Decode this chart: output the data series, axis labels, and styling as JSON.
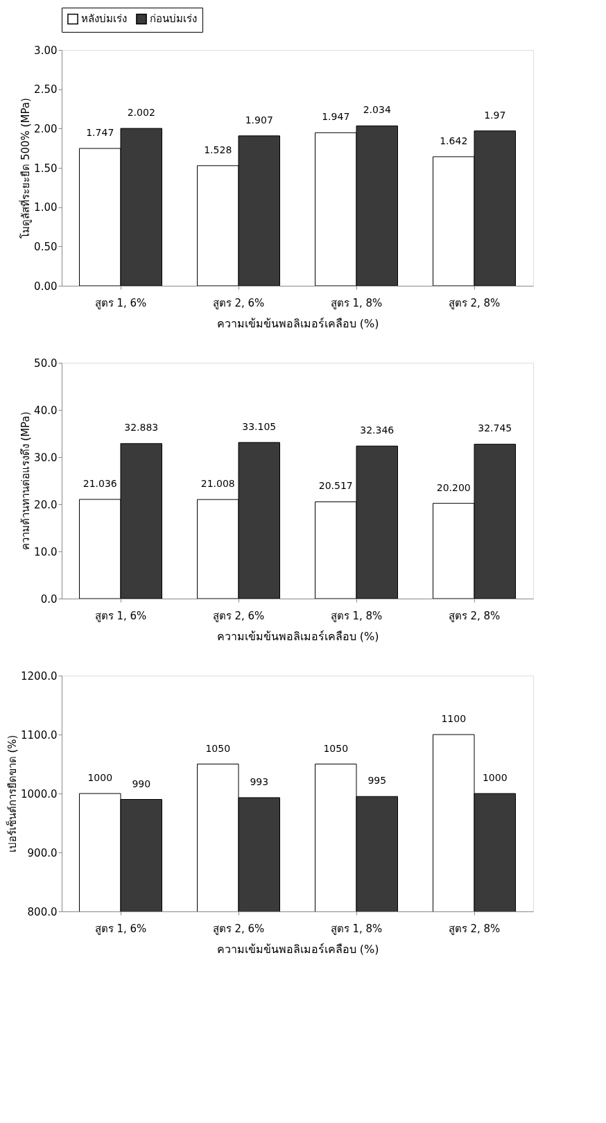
{
  "chart_data": [
    {
      "type": "bar",
      "xlabel": "ความเข้มข้นพอลิเมอร์เคลือบ (%)",
      "ylabel": "โมดูลัสที่ระยะยืด 500% (MPa)",
      "categories": [
        "สูตร 1, 6%",
        "สูตร 2, 6%",
        "สูตร 1, 8%",
        "สูตร 2, 8%"
      ],
      "series": [
        {
          "name": "หลังบ่มเร่ง",
          "color": "#ffffff",
          "values": [
            1.747,
            1.528,
            1.947,
            1.642
          ],
          "value_labels": [
            "1.747",
            "1.528",
            "1.947",
            "1.642"
          ]
        },
        {
          "name": "ก่อนบ่มเร่ง",
          "color": "#3a3a3a",
          "values": [
            2.002,
            1.907,
            2.034,
            1.97
          ],
          "value_labels": [
            "2.002",
            "1.907",
            "2.034",
            "1.97"
          ]
        }
      ],
      "ylim": [
        0,
        3
      ],
      "yticks": [
        {
          "value": 0,
          "label": "0.00"
        },
        {
          "value": 0.5,
          "label": "0.50"
        },
        {
          "value": 1,
          "label": "1.00"
        },
        {
          "value": 1.5,
          "label": "1.50"
        },
        {
          "value": 2,
          "label": "2.00"
        },
        {
          "value": 2.5,
          "label": "2.50"
        },
        {
          "value": 3,
          "label": "3.00"
        }
      ],
      "grid": false,
      "legend": "top"
    },
    {
      "type": "bar",
      "xlabel": "ความเข้มข้นพอลิเมอร์เคลือบ (%)",
      "ylabel": "ความต้านทานต่อแรงดึง (MPa)",
      "categories": [
        "สูตร 1, 6%",
        "สูตร 2, 6%",
        "สูตร 1, 8%",
        "สูตร 2, 8%"
      ],
      "series": [
        {
          "name": "หลังบ่มเร่ง",
          "color": "#ffffff",
          "values": [
            21.036,
            21.008,
            20.517,
            20.2
          ],
          "value_labels": [
            "21.036",
            "21.008",
            "20.517",
            "20.200"
          ]
        },
        {
          "name": "ก่อนบ่มเร่ง",
          "color": "#3a3a3a",
          "values": [
            32.883,
            33.105,
            32.346,
            32.745
          ],
          "value_labels": [
            "32.883",
            "33.105",
            "32.346",
            "32.745"
          ]
        }
      ],
      "ylim": [
        0,
        50
      ],
      "yticks": [
        {
          "value": 0,
          "label": "0.0"
        },
        {
          "value": 10,
          "label": "10.0"
        },
        {
          "value": 20,
          "label": "20.0"
        },
        {
          "value": 30,
          "label": "30.0"
        },
        {
          "value": 40,
          "label": "40.0"
        },
        {
          "value": 50,
          "label": "50.0"
        }
      ],
      "grid": false,
      "legend": false
    },
    {
      "type": "bar",
      "xlabel": "ความเข้มข้นพอลิเมอร์เคลือบ (%)",
      "ylabel": "เปอร์เซ็นต์การยืดขาด (%)",
      "categories": [
        "สูตร 1, 6%",
        "สูตร 2, 6%",
        "สูตร 1, 8%",
        "สูตร 2, 8%"
      ],
      "series": [
        {
          "name": "หลังบ่มเร่ง",
          "color": "#ffffff",
          "values": [
            1000,
            1050,
            1050,
            1100
          ],
          "value_labels": [
            "1000",
            "1050",
            "1050",
            "1100"
          ]
        },
        {
          "name": "ก่อนบ่มเร่ง",
          "color": "#3a3a3a",
          "values": [
            990,
            993,
            995,
            1000
          ],
          "value_labels": [
            "990",
            "993",
            "995",
            "1000"
          ]
        }
      ],
      "ylim": [
        800,
        1200
      ],
      "yticks": [
        {
          "value": 800,
          "label": "800.0"
        },
        {
          "value": 900,
          "label": "900.0"
        },
        {
          "value": 1000,
          "label": "1000.0"
        },
        {
          "value": 1100,
          "label": "1100.0"
        },
        {
          "value": 1200,
          "label": "1200.0"
        }
      ],
      "grid": false,
      "legend": false
    }
  ]
}
